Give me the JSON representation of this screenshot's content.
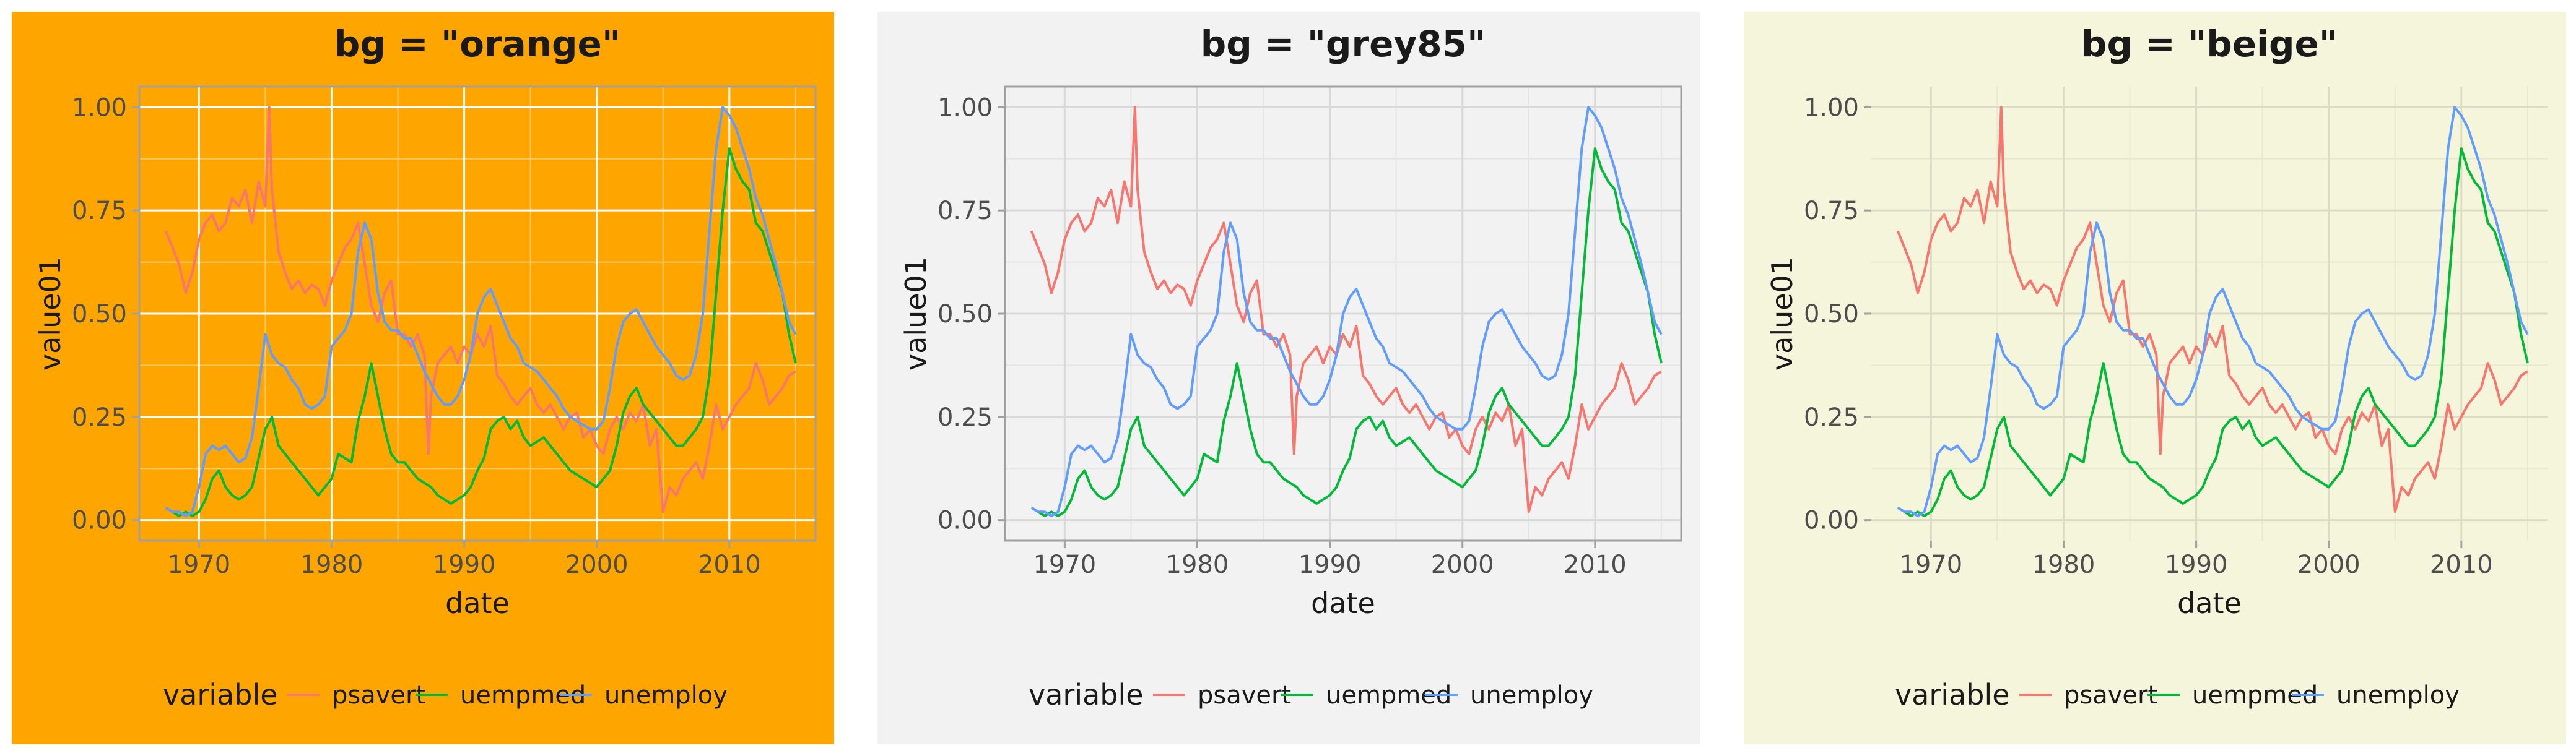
{
  "panels": [
    {
      "title": "bg = \"orange\"",
      "bg": "#FFA500",
      "plot_bg": "#FFA500",
      "grid_major": "#FFFFFF",
      "grid_minor": "#FFC966",
      "gray_border": true
    },
    {
      "title": "bg = \"grey85\"",
      "bg": "#F2F2F2",
      "plot_bg": "#F2F2F2",
      "grid_major": "#D9D9D9",
      "grid_minor": "#E5E5E5",
      "gray_border": true
    },
    {
      "title": "bg = \"beige\"",
      "bg": "#F5F5DC",
      "plot_bg": "#F5F5DC",
      "grid_major": "#DCDCC6",
      "grid_minor": "#E8E8D1",
      "gray_border": false
    }
  ],
  "chart_data": {
    "type": "line",
    "xlabel": "date",
    "ylabel": "value01",
    "x_ticks": [
      "1970",
      "1980",
      "1990",
      "2000",
      "2010"
    ],
    "y_ticks": [
      "0.00",
      "0.25",
      "0.50",
      "0.75",
      "1.00"
    ],
    "xlim": [
      1965.5,
      2016.5
    ],
    "ylim": [
      -0.05,
      1.05
    ],
    "legend_title": "variable",
    "legend_position": "bottom",
    "grid": true,
    "series": [
      {
        "name": "psavert",
        "color": "#F8766D",
        "x": [
          1967.5,
          1968,
          1968.5,
          1969,
          1969.5,
          1970,
          1970.5,
          1971,
          1971.5,
          1972,
          1972.5,
          1973,
          1973.5,
          1974,
          1974.5,
          1975,
          1975.3,
          1975.5,
          1976,
          1976.5,
          1977,
          1977.5,
          1978,
          1978.5,
          1979,
          1979.5,
          1980,
          1980.5,
          1981,
          1981.5,
          1982,
          1982.5,
          1983,
          1983.5,
          1984,
          1984.5,
          1985,
          1985.5,
          1986,
          1986.5,
          1987,
          1987.3,
          1987.5,
          1988,
          1988.5,
          1989,
          1989.5,
          1990,
          1990.5,
          1991,
          1991.5,
          1992,
          1992.5,
          1993,
          1993.5,
          1994,
          1994.5,
          1995,
          1995.5,
          1996,
          1996.5,
          1997,
          1997.5,
          1998,
          1998.5,
          1999,
          1999.5,
          2000,
          2000.5,
          2001,
          2001.5,
          2002,
          2002.5,
          2003,
          2003.5,
          2004,
          2004.5,
          2005,
          2005.5,
          2006,
          2006.5,
          2007,
          2007.5,
          2008,
          2008.5,
          2009,
          2009.5,
          2010,
          2010.5,
          2011,
          2011.5,
          2012,
          2012.5,
          2013,
          2013.5,
          2014,
          2014.5,
          2015
        ],
        "values": [
          0.7,
          0.66,
          0.62,
          0.55,
          0.6,
          0.68,
          0.72,
          0.74,
          0.7,
          0.72,
          0.78,
          0.76,
          0.8,
          0.72,
          0.82,
          0.76,
          1.0,
          0.8,
          0.65,
          0.6,
          0.56,
          0.58,
          0.55,
          0.57,
          0.56,
          0.52,
          0.58,
          0.62,
          0.66,
          0.68,
          0.72,
          0.62,
          0.52,
          0.48,
          0.55,
          0.58,
          0.45,
          0.45,
          0.42,
          0.45,
          0.4,
          0.16,
          0.3,
          0.38,
          0.4,
          0.42,
          0.38,
          0.42,
          0.4,
          0.45,
          0.42,
          0.47,
          0.35,
          0.33,
          0.3,
          0.28,
          0.3,
          0.32,
          0.28,
          0.26,
          0.28,
          0.25,
          0.22,
          0.25,
          0.26,
          0.2,
          0.22,
          0.18,
          0.16,
          0.22,
          0.25,
          0.22,
          0.26,
          0.24,
          0.28,
          0.18,
          0.22,
          0.02,
          0.08,
          0.06,
          0.1,
          0.12,
          0.14,
          0.1,
          0.18,
          0.28,
          0.22,
          0.25,
          0.28,
          0.3,
          0.32,
          0.38,
          0.34,
          0.28,
          0.3,
          0.32,
          0.35,
          0.36
        ]
      },
      {
        "name": "uempmed",
        "color": "#00BA38",
        "x": [
          1967.5,
          1968,
          1968.5,
          1969,
          1969.5,
          1970,
          1970.5,
          1971,
          1971.5,
          1972,
          1972.5,
          1973,
          1973.5,
          1974,
          1974.5,
          1975,
          1975.5,
          1976,
          1976.5,
          1977,
          1977.5,
          1978,
          1978.5,
          1979,
          1979.5,
          1980,
          1980.5,
          1981,
          1981.5,
          1982,
          1982.5,
          1983,
          1983.5,
          1984,
          1984.5,
          1985,
          1985.5,
          1986,
          1986.5,
          1987,
          1987.5,
          1988,
          1988.5,
          1989,
          1989.5,
          1990,
          1990.5,
          1991,
          1991.5,
          1992,
          1992.5,
          1993,
          1993.5,
          1994,
          1994.5,
          1995,
          1995.5,
          1996,
          1996.5,
          1997,
          1997.5,
          1998,
          1998.5,
          1999,
          1999.5,
          2000,
          2000.5,
          2001,
          2001.5,
          2002,
          2002.5,
          2003,
          2003.5,
          2004,
          2004.5,
          2005,
          2005.5,
          2006,
          2006.5,
          2007,
          2007.5,
          2008,
          2008.5,
          2009,
          2009.5,
          2010,
          2010.5,
          2011,
          2011.5,
          2012,
          2012.5,
          2013,
          2013.5,
          2014,
          2014.5,
          2015
        ],
        "values": [
          0.03,
          0.02,
          0.01,
          0.02,
          0.01,
          0.02,
          0.05,
          0.1,
          0.12,
          0.08,
          0.06,
          0.05,
          0.06,
          0.08,
          0.15,
          0.22,
          0.25,
          0.18,
          0.16,
          0.14,
          0.12,
          0.1,
          0.08,
          0.06,
          0.08,
          0.1,
          0.16,
          0.15,
          0.14,
          0.24,
          0.3,
          0.38,
          0.3,
          0.22,
          0.16,
          0.14,
          0.14,
          0.12,
          0.1,
          0.09,
          0.08,
          0.06,
          0.05,
          0.04,
          0.05,
          0.06,
          0.08,
          0.12,
          0.15,
          0.22,
          0.24,
          0.25,
          0.22,
          0.24,
          0.2,
          0.18,
          0.19,
          0.2,
          0.18,
          0.16,
          0.14,
          0.12,
          0.11,
          0.1,
          0.09,
          0.08,
          0.1,
          0.12,
          0.18,
          0.26,
          0.3,
          0.32,
          0.28,
          0.26,
          0.24,
          0.22,
          0.2,
          0.18,
          0.18,
          0.2,
          0.22,
          0.25,
          0.35,
          0.55,
          0.75,
          0.9,
          0.85,
          0.82,
          0.8,
          0.72,
          0.7,
          0.65,
          0.6,
          0.55,
          0.45,
          0.38
        ]
      },
      {
        "name": "unemploy",
        "color": "#619CFF",
        "x": [
          1967.5,
          1968,
          1968.5,
          1969,
          1969.5,
          1970,
          1970.5,
          1971,
          1971.5,
          1972,
          1972.5,
          1973,
          1973.5,
          1974,
          1974.5,
          1975,
          1975.5,
          1976,
          1976.5,
          1977,
          1977.5,
          1978,
          1978.5,
          1979,
          1979.5,
          1980,
          1980.5,
          1981,
          1981.5,
          1982,
          1982.5,
          1983,
          1983.5,
          1984,
          1984.5,
          1985,
          1985.5,
          1986,
          1986.5,
          1987,
          1987.5,
          1988,
          1988.5,
          1989,
          1989.5,
          1990,
          1990.5,
          1991,
          1991.5,
          1992,
          1992.5,
          1993,
          1993.5,
          1994,
          1994.5,
          1995,
          1995.5,
          1996,
          1996.5,
          1997,
          1997.5,
          1998,
          1998.5,
          1999,
          1999.5,
          2000,
          2000.5,
          2001,
          2001.5,
          2002,
          2002.5,
          2003,
          2003.5,
          2004,
          2004.5,
          2005,
          2005.5,
          2006,
          2006.5,
          2007,
          2007.5,
          2008,
          2008.5,
          2009,
          2009.5,
          2010,
          2010.5,
          2011,
          2011.5,
          2012,
          2012.5,
          2013,
          2013.5,
          2014,
          2014.5,
          2015
        ],
        "values": [
          0.03,
          0.02,
          0.02,
          0.01,
          0.02,
          0.08,
          0.16,
          0.18,
          0.17,
          0.18,
          0.16,
          0.14,
          0.15,
          0.2,
          0.32,
          0.45,
          0.4,
          0.38,
          0.37,
          0.34,
          0.32,
          0.28,
          0.27,
          0.28,
          0.3,
          0.42,
          0.44,
          0.46,
          0.5,
          0.65,
          0.72,
          0.68,
          0.55,
          0.48,
          0.46,
          0.46,
          0.44,
          0.44,
          0.4,
          0.36,
          0.33,
          0.3,
          0.28,
          0.28,
          0.3,
          0.34,
          0.4,
          0.5,
          0.54,
          0.56,
          0.52,
          0.48,
          0.44,
          0.42,
          0.38,
          0.37,
          0.36,
          0.34,
          0.32,
          0.3,
          0.27,
          0.25,
          0.24,
          0.23,
          0.22,
          0.22,
          0.24,
          0.32,
          0.42,
          0.48,
          0.5,
          0.51,
          0.48,
          0.45,
          0.42,
          0.4,
          0.38,
          0.35,
          0.34,
          0.35,
          0.4,
          0.5,
          0.7,
          0.9,
          1.0,
          0.98,
          0.95,
          0.9,
          0.85,
          0.78,
          0.74,
          0.68,
          0.62,
          0.55,
          0.48,
          0.45
        ]
      }
    ]
  }
}
